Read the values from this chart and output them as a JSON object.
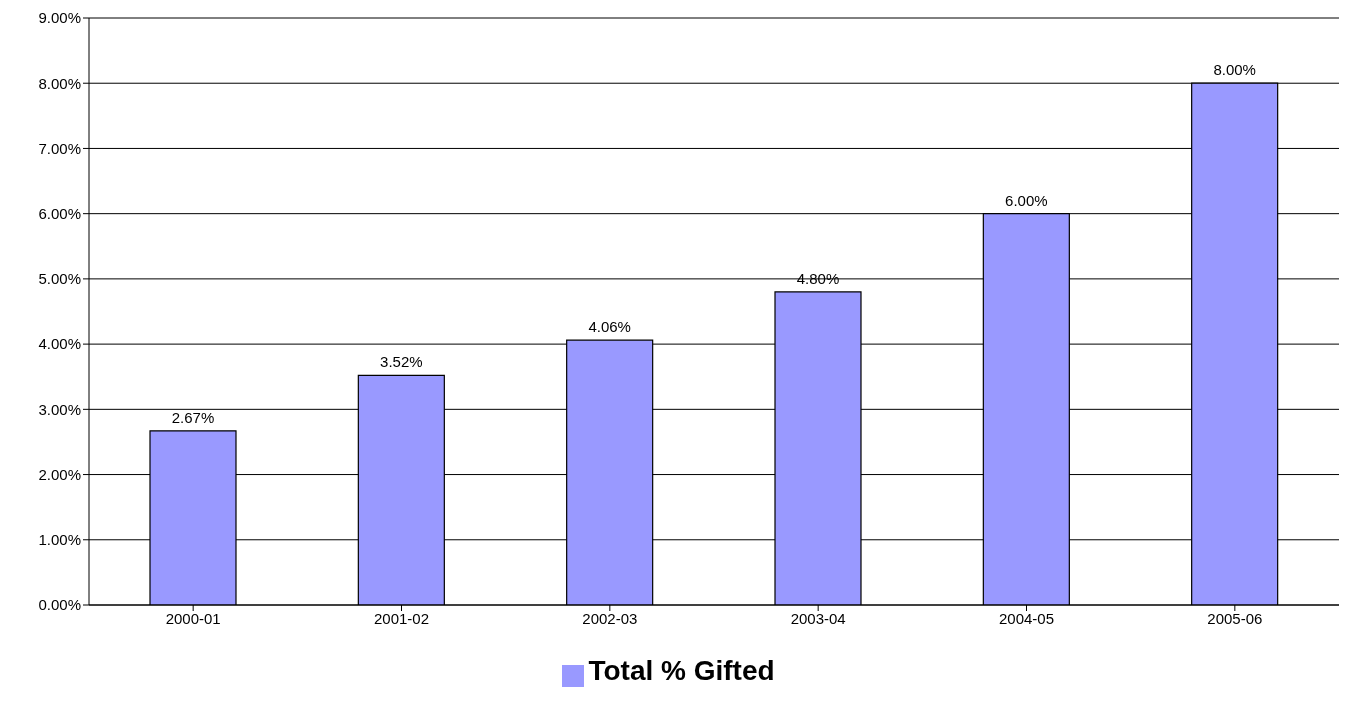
{
  "chart_data": {
    "type": "bar",
    "categories": [
      "2000-01",
      "2001-02",
      "2002-03",
      "2003-04",
      "2004-05",
      "2005-06"
    ],
    "series": [
      {
        "name": "Total % Gifted",
        "color": "#9999ff",
        "values": [
          2.67,
          3.52,
          4.06,
          4.8,
          6.0,
          8.0
        ],
        "value_labels": [
          "2.67%",
          "3.52%",
          "4.06%",
          "4.80%",
          "6.00%",
          "8.00%"
        ]
      }
    ],
    "ylim": [
      0,
      9
    ],
    "yticks": [
      {
        "value": 0,
        "label": "0.00%"
      },
      {
        "value": 1,
        "label": "1.00%"
      },
      {
        "value": 2,
        "label": "2.00%"
      },
      {
        "value": 3,
        "label": "3.00%"
      },
      {
        "value": 4,
        "label": "4.00%"
      },
      {
        "value": 5,
        "label": "5.00%"
      },
      {
        "value": 6,
        "label": "6.00%"
      },
      {
        "value": 7,
        "label": "7.00%"
      },
      {
        "value": 8,
        "label": "8.00%"
      },
      {
        "value": 9,
        "label": "9.00%"
      }
    ],
    "grid": "y",
    "legend": "bottom"
  }
}
